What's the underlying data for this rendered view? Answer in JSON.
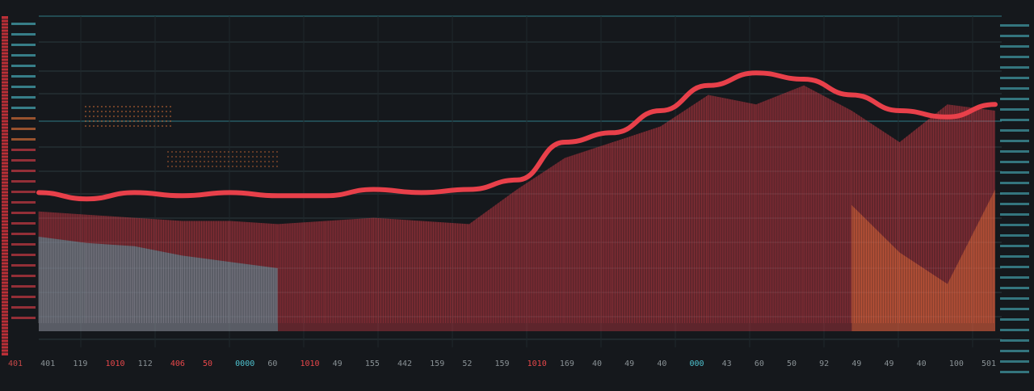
{
  "chart_data": {
    "type": "area",
    "title": "",
    "xlabel": "",
    "ylabel": "",
    "grid": true,
    "legend": "none",
    "x_tick_labels": [
      {
        "text": "401",
        "color": "#c84848"
      },
      {
        "text": "401",
        "color": "#8a9296"
      },
      {
        "text": "119",
        "color": "#8a9296"
      },
      {
        "text": "1010",
        "color": "#e8474a"
      },
      {
        "text": "112",
        "color": "#8a9296"
      },
      {
        "text": "406",
        "color": "#e8474a"
      },
      {
        "text": "50",
        "color": "#e8474a"
      },
      {
        "text": "0000",
        "color": "#4fc3d0"
      },
      {
        "text": "60",
        "color": "#8a9296"
      },
      {
        "text": "1010",
        "color": "#e8474a"
      },
      {
        "text": "49",
        "color": "#8a9296"
      },
      {
        "text": "155",
        "color": "#8a9296"
      },
      {
        "text": "442",
        "color": "#8a9296"
      },
      {
        "text": "159",
        "color": "#8a9296"
      },
      {
        "text": "52",
        "color": "#8a9296"
      },
      {
        "text": "159",
        "color": "#8a9296"
      },
      {
        "text": "1010",
        "color": "#e8474a"
      },
      {
        "text": "169",
        "color": "#8a9296"
      },
      {
        "text": "40",
        "color": "#8a9296"
      },
      {
        "text": "49",
        "color": "#8a9296"
      },
      {
        "text": "40",
        "color": "#8a9296"
      },
      {
        "text": "000",
        "color": "#4fc3d0"
      },
      {
        "text": "43",
        "color": "#8a9296"
      },
      {
        "text": "60",
        "color": "#8a9296"
      },
      {
        "text": "50",
        "color": "#8a9296"
      },
      {
        "text": "92",
        "color": "#8a9296"
      },
      {
        "text": "49",
        "color": "#8a9296"
      },
      {
        "text": "49",
        "color": "#8a9296"
      },
      {
        "text": "40",
        "color": "#8a9296"
      },
      {
        "text": "100",
        "color": "#8a9296"
      },
      {
        "text": "501",
        "color": "#8a9296"
      }
    ],
    "ylim": [
      0,
      100
    ],
    "x": [
      0,
      5,
      10,
      15,
      20,
      25,
      30,
      35,
      40,
      45,
      50,
      55,
      60,
      65,
      70,
      75,
      80,
      85,
      90,
      95,
      100
    ],
    "series": [
      {
        "id": "red-line",
        "style": "line",
        "color": "#e8404a",
        "values": [
          44,
          42,
          44,
          43,
          44,
          43,
          43,
          45,
          44,
          45,
          48,
          60,
          63,
          70,
          78,
          82,
          80,
          75,
          70,
          68,
          72
        ]
      },
      {
        "id": "red-area",
        "style": "area",
        "color": "#e8404a",
        "values": [
          38,
          37,
          36,
          35,
          35,
          34,
          35,
          36,
          35,
          34,
          45,
          55,
          60,
          65,
          75,
          72,
          78,
          70,
          60,
          72,
          70
        ]
      },
      {
        "id": "cyan-area",
        "style": "area",
        "color": "#4fc3d0",
        "values": [
          30,
          28,
          27,
          24,
          22,
          20,
          0,
          0,
          0,
          0,
          0,
          0,
          0,
          0,
          0,
          0,
          0,
          0,
          0,
          0,
          0
        ]
      },
      {
        "id": "orange-area",
        "style": "area",
        "color": "#f07a3a",
        "values": [
          0,
          0,
          0,
          0,
          0,
          0,
          0,
          0,
          0,
          0,
          0,
          0,
          0,
          0,
          0,
          0,
          0,
          40,
          25,
          15,
          45
        ]
      }
    ],
    "palette": {
      "background": "#15181c",
      "grid": "#2a3a3e",
      "grid_accent": "#2f7c86",
      "red": "#e8404a",
      "cyan": "#4fc3d0",
      "orange": "#f07a3a",
      "tick": "#8a9296"
    }
  }
}
